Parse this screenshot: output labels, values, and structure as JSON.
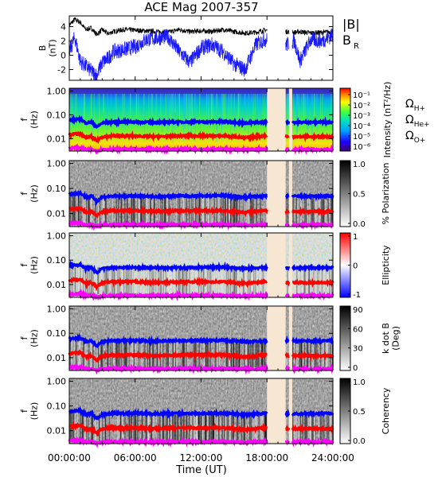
{
  "title": "ACE Mag 2007-357",
  "xlabel": "Time (UT)",
  "colors": {
    "b_total": "#000000",
    "b_r": "#1a1aff",
    "h_plus": "#0000ff",
    "he_plus": "#ff0000",
    "o_plus": "#ff00ff",
    "gap": "#f6e6d2"
  },
  "chart_data": [
    {
      "panel": "magnetic-field",
      "type": "line",
      "ylabel": [
        "B",
        "(nT)"
      ],
      "x_range_hours": [
        0,
        24
      ],
      "xticks": [
        "00:00:00",
        "06:00:00",
        "12:00:00",
        "18:00:00",
        "24:00:00"
      ],
      "ylim": [
        -3.5,
        5.5
      ],
      "yticks": [
        "4",
        "2",
        "0",
        "-2"
      ],
      "legend": [
        "|B|",
        "B",
        "R"
      ],
      "data_gaps_hours": [
        [
          18.0,
          19.7
        ],
        [
          20.0,
          20.3
        ]
      ],
      "series": [
        {
          "name": "|B|",
          "x": [
            0,
            0.5,
            1,
            1.5,
            2,
            2.5,
            3,
            3.5,
            4,
            5,
            6,
            7,
            8,
            9,
            10,
            11,
            12,
            13,
            14,
            15,
            16,
            17,
            17.8,
            19.8,
            20.5,
            21,
            22,
            23,
            24
          ],
          "y": [
            4.2,
            5.0,
            4.6,
            3.6,
            3.8,
            2.9,
            3.6,
            3.0,
            3.3,
            3.6,
            3.5,
            3.4,
            3.3,
            3.2,
            3.6,
            3.3,
            3.4,
            3.3,
            3.6,
            3.3,
            3.1,
            3.2,
            3.5,
            3.3,
            3.2,
            3.3,
            3.1,
            3.2,
            3.3
          ]
        },
        {
          "name": "B_R",
          "x": [
            0,
            0.5,
            1,
            1.5,
            2,
            2.5,
            3,
            3.5,
            4,
            5,
            6,
            7,
            8,
            9,
            10,
            11,
            12,
            13,
            14,
            15,
            16,
            17,
            17.8,
            19.8,
            20.5,
            21,
            22,
            23,
            24
          ],
          "y": [
            0.5,
            2.5,
            -0.8,
            -1.5,
            -2.2,
            -2.8,
            -1.0,
            -0.5,
            0.5,
            0.8,
            1.2,
            2.2,
            2.4,
            2.6,
            0.5,
            -1.0,
            1.0,
            1.5,
            0.5,
            -1.2,
            -2.0,
            1.5,
            2.2,
            1.5,
            2.0,
            -0.8,
            2.2,
            2.0,
            2.8
          ]
        }
      ]
    },
    {
      "panel": "intensity",
      "type": "heatmap",
      "ylabel": [
        "f",
        "(Hz)"
      ],
      "yscale": "log",
      "ylim": [
        0.003,
        1.3
      ],
      "yticks": [
        "1.00",
        "0.10",
        "0.01"
      ],
      "colorbar_label": "Intensity (nT²/Hz)",
      "colorbar_ticks": [
        "10⁻¹",
        "10⁻²",
        "10⁻³",
        "10⁻⁴",
        "10⁻⁵",
        "10⁻⁶"
      ],
      "colormap": "rainbow",
      "cyclotron_legend": [
        "ΩH+",
        "ΩHe+",
        "ΩO+"
      ]
    },
    {
      "panel": "polarization",
      "type": "heatmap",
      "ylabel": [
        "f",
        "(Hz)"
      ],
      "yscale": "log",
      "yticks": [
        "1.00",
        "0.10",
        "0.01"
      ],
      "colorbar_label": "% Polarization",
      "colorbar_ticks": [
        "1.0",
        "0.5",
        "0.0"
      ],
      "colormap": "gray"
    },
    {
      "panel": "ellipticity",
      "type": "heatmap",
      "ylabel": [
        "f",
        "(Hz)"
      ],
      "yscale": "log",
      "yticks": [
        "1.00",
        "0.10",
        "0.01"
      ],
      "colorbar_label": "Ellipticity",
      "colorbar_ticks": [
        "1",
        "0",
        "-1"
      ],
      "colormap": "blue-white-red"
    },
    {
      "panel": "k-dot-b",
      "type": "heatmap",
      "ylabel": [
        "f",
        "(Hz)"
      ],
      "yscale": "log",
      "yticks": [
        "1.00",
        "0.10",
        "0.01"
      ],
      "colorbar_label": [
        "k dot B",
        "(Deg)"
      ],
      "colorbar_ticks": [
        "90",
        "60",
        "30",
        "0"
      ],
      "colormap": "gray"
    },
    {
      "panel": "coherency",
      "type": "heatmap",
      "ylabel": [
        "f",
        "(Hz)"
      ],
      "yscale": "log",
      "yticks": [
        "1.00",
        "0.10",
        "0.01"
      ],
      "colorbar_label": "Coherency",
      "colorbar_ticks": [
        "1.0",
        "0.5",
        "0.0"
      ],
      "colormap": "gray"
    }
  ],
  "cyclotron_frequencies": {
    "x": [
      0,
      1,
      1.5,
      2,
      2.5,
      3,
      4,
      6,
      8,
      10,
      12,
      14,
      16,
      17.8,
      19.8,
      21,
      24
    ],
    "h_plus": [
      0.06,
      0.065,
      0.045,
      0.05,
      0.03,
      0.045,
      0.05,
      0.05,
      0.048,
      0.05,
      0.05,
      0.052,
      0.045,
      0.05,
      0.05,
      0.048,
      0.05
    ],
    "he_plus": [
      0.015,
      0.016,
      0.011,
      0.012,
      0.008,
      0.012,
      0.013,
      0.013,
      0.012,
      0.013,
      0.013,
      0.013,
      0.011,
      0.013,
      0.012,
      0.012,
      0.012
    ],
    "o_plus": [
      0.004,
      0.0042,
      0.0035,
      0.0036,
      0.003,
      0.0035,
      0.0036,
      0.0036,
      0.0035,
      0.0036,
      0.0036,
      0.0036,
      0.0034,
      0.0036,
      0.0035,
      0.0035,
      0.0035
    ]
  }
}
